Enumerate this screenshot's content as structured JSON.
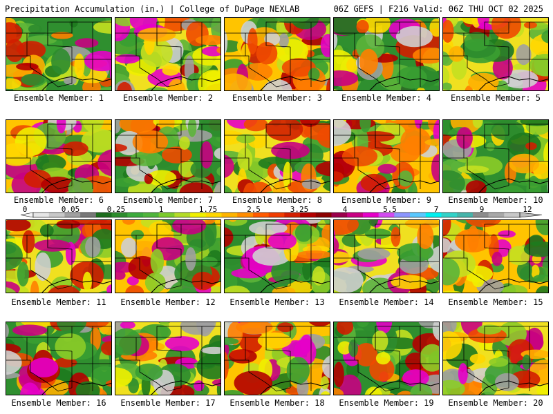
{
  "header": {
    "left": "Precipitation Accumulation (in.) | College of DuPage NEXLAB",
    "right": "06Z GEFS | F216 Valid: 06Z THU OCT 02 2025"
  },
  "legend": {
    "labels": [
      "0",
      "0.05",
      "0.25",
      "1",
      "1.75",
      "2.5",
      "3.25",
      "4",
      "5.5",
      "7",
      "9",
      "12"
    ],
    "colors": [
      "#e6e6e6",
      "#c8c8c8",
      "#a0a0a0",
      "#787878",
      "#1e6e1e",
      "#2d8c2d",
      "#3caa3c",
      "#50b43c",
      "#7ccb2c",
      "#b4dc28",
      "#f0f000",
      "#ffd700",
      "#ffb400",
      "#ff8c00",
      "#ff5a00",
      "#f03c00",
      "#d21e00",
      "#b40000",
      "#8c0000",
      "#9b004b",
      "#c80082",
      "#e600c8",
      "#d24bf0",
      "#8c96ff",
      "#5ac8ff",
      "#00f0f0",
      "#32d2c8",
      "#46b4aa",
      "#8c8c8c",
      "#a8a8a8",
      "#c8c8c8"
    ]
  },
  "members": [
    {
      "caption": "Ensemble Member: 1"
    },
    {
      "caption": "Ensemble Member: 2"
    },
    {
      "caption": "Ensemble Member: 3"
    },
    {
      "caption": "Ensemble Member: 4"
    },
    {
      "caption": "Ensemble Member: 5"
    },
    {
      "caption": "Ensemble Member: 6"
    },
    {
      "caption": "Ensemble Member: 7"
    },
    {
      "caption": "Ensemble Member: 8"
    },
    {
      "caption": "Ensemble Member: 9"
    },
    {
      "caption": "Ensemble Member: 10"
    },
    {
      "caption": "Ensemble Member: 11"
    },
    {
      "caption": "Ensemble Member: 12"
    },
    {
      "caption": "Ensemble Member: 13"
    },
    {
      "caption": "Ensemble Member: 14"
    },
    {
      "caption": "Ensemble Member: 15"
    },
    {
      "caption": "Ensemble Member: 16"
    },
    {
      "caption": "Ensemble Member: 17"
    },
    {
      "caption": "Ensemble Member: 18"
    },
    {
      "caption": "Ensemble Member: 19"
    },
    {
      "caption": "Ensemble Member: 20"
    }
  ]
}
